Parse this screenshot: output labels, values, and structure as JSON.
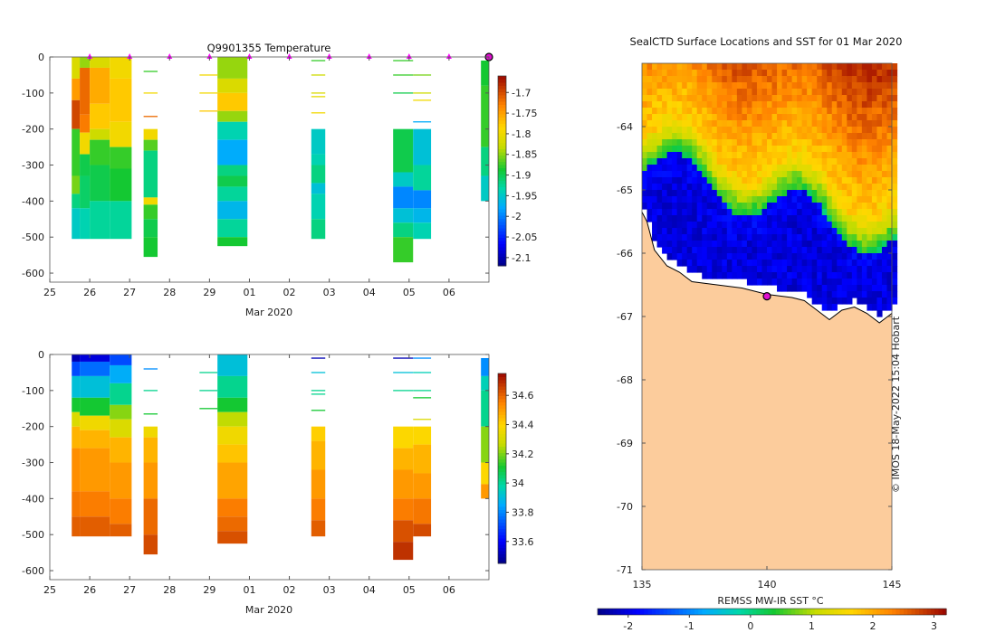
{
  "chart_data": [
    {
      "type": "heatmap",
      "name": "temperature-section",
      "title": "Q9901355  Temperature",
      "xlabel": "Mar 2020",
      "ylabel": "",
      "x_ticks": [
        "25",
        "26",
        "27",
        "28",
        "29",
        "01",
        "02",
        "03",
        "04",
        "05",
        "06"
      ],
      "xlim": [
        25,
        36
      ],
      "ylim": [
        -625,
        0
      ],
      "y_ticks": [
        0,
        -100,
        -200,
        -300,
        -400,
        -500,
        -600
      ],
      "colorbar": {
        "min": -2.12,
        "max": -1.66,
        "ticks": [
          -1.7,
          -1.75,
          -1.8,
          -1.85,
          -1.9,
          -1.95,
          -2,
          -2.05,
          -2.1
        ]
      },
      "surface_markers_day": [
        26,
        27,
        28,
        29,
        30,
        31,
        32,
        33,
        34,
        35
      ],
      "latest_marker_day": 36,
      "profiles": [
        {
          "x0": 25.55,
          "x1": 25.75,
          "depth": 505,
          "layers": [
            [
              0,
              -1.82
            ],
            [
              60,
              -1.75
            ],
            [
              120,
              -1.7
            ],
            [
              200,
              -1.88
            ],
            [
              330,
              -1.86
            ],
            [
              380,
              -1.92
            ],
            [
              420,
              -1.95
            ]
          ]
        },
        {
          "x0": 25.75,
          "x1": 26.0,
          "depth": 505,
          "layers": [
            [
              0,
              -1.85
            ],
            [
              30,
              -1.72
            ],
            [
              160,
              -1.73
            ],
            [
              210,
              -1.8
            ],
            [
              270,
              -1.9
            ],
            [
              330,
              -1.91
            ],
            [
              420,
              -1.94
            ]
          ]
        },
        {
          "x0": 26.0,
          "x1": 26.5,
          "depth": 505,
          "layers": [
            [
              0,
              -1.82
            ],
            [
              30,
              -1.76
            ],
            [
              130,
              -1.78
            ],
            [
              200,
              -1.83
            ],
            [
              230,
              -1.88
            ],
            [
              300,
              -1.9
            ],
            [
              400,
              -1.93
            ]
          ]
        },
        {
          "x0": 26.5,
          "x1": 27.05,
          "depth": 505,
          "layers": [
            [
              0,
              -1.8
            ],
            [
              60,
              -1.78
            ],
            [
              180,
              -1.8
            ],
            [
              250,
              -1.88
            ],
            [
              310,
              -1.89
            ],
            [
              400,
              -1.93
            ]
          ]
        },
        {
          "x0": 27.35,
          "x1": 27.7,
          "depth": 555,
          "layers": [
            [
              200,
              -1.8
            ],
            [
              230,
              -1.87
            ],
            [
              260,
              -1.92
            ],
            [
              390,
              -1.8
            ],
            [
              410,
              -1.88
            ],
            [
              450,
              -1.9
            ],
            [
              500,
              -1.89
            ]
          ]
        },
        {
          "x0": 29.2,
          "x1": 29.95,
          "depth": 525,
          "layers": [
            [
              0,
              -1.85
            ],
            [
              60,
              -1.82
            ],
            [
              100,
              -1.78
            ],
            [
              150,
              -1.85
            ],
            [
              180,
              -1.94
            ],
            [
              230,
              -1.98
            ],
            [
              300,
              -1.92
            ],
            [
              330,
              -1.9
            ],
            [
              360,
              -1.93
            ],
            [
              400,
              -1.97
            ],
            [
              450,
              -1.93
            ],
            [
              500,
              -1.89
            ]
          ]
        },
        {
          "x0": 31.55,
          "x1": 31.9,
          "depth": 505,
          "layers": [
            [
              200,
              -1.95
            ],
            [
              270,
              -1.94
            ],
            [
              300,
              -1.92
            ],
            [
              350,
              -1.96
            ],
            [
              380,
              -1.94
            ],
            [
              450,
              -1.92
            ]
          ]
        },
        {
          "x0": 33.6,
          "x1": 34.1,
          "depth": 570,
          "layers": [
            [
              200,
              -1.9
            ],
            [
              320,
              -1.95
            ],
            [
              360,
              -2.0
            ],
            [
              420,
              -1.96
            ],
            [
              460,
              -1.92
            ],
            [
              500,
              -1.88
            ]
          ]
        },
        {
          "x0": 34.1,
          "x1": 34.55,
          "depth": 505,
          "layers": [
            [
              200,
              -1.96
            ],
            [
              300,
              -1.93
            ],
            [
              370,
              -2.0
            ],
            [
              420,
              -1.97
            ],
            [
              460,
              -1.94
            ]
          ]
        },
        {
          "x0": 35.8,
          "x1": 36.0,
          "depth": 400,
          "layers": [
            [
              10,
              -1.89
            ],
            [
              80,
              -1.88
            ],
            [
              250,
              -1.92
            ],
            [
              330,
              -1.95
            ]
          ]
        }
      ],
      "thin_lines": [
        {
          "x0": 27.35,
          "x1": 27.7,
          "depths": [
            [
              40,
              -1.88
            ],
            [
              100,
              -1.8
            ],
            [
              165,
              -1.72
            ]
          ]
        },
        {
          "x0": 28.75,
          "x1": 29.2,
          "depths": [
            [
              50,
              -1.8
            ],
            [
              100,
              -1.8
            ],
            [
              150,
              -1.78
            ]
          ]
        },
        {
          "x0": 31.55,
          "x1": 31.9,
          "depths": [
            [
              10,
              -1.88
            ],
            [
              50,
              -1.83
            ],
            [
              100,
              -1.82
            ],
            [
              110,
              -1.81
            ],
            [
              155,
              -1.8
            ]
          ]
        },
        {
          "x0": 33.6,
          "x1": 34.1,
          "depths": [
            [
              10,
              -1.88
            ],
            [
              50,
              -1.88
            ],
            [
              100,
              -1.9
            ]
          ]
        },
        {
          "x0": 34.1,
          "x1": 34.55,
          "depths": [
            [
              50,
              -1.86
            ],
            [
              100,
              -1.83
            ],
            [
              120,
              -1.8
            ],
            [
              180,
              -1.98
            ]
          ]
        }
      ]
    },
    {
      "type": "heatmap",
      "name": "salinity-section",
      "title": "",
      "xlabel": "Mar 2020",
      "x_ticks": [
        "25",
        "26",
        "27",
        "28",
        "29",
        "01",
        "02",
        "03",
        "04",
        "05",
        "06"
      ],
      "xlim": [
        25,
        36
      ],
      "ylim": [
        -625,
        0
      ],
      "y_ticks": [
        0,
        -100,
        -200,
        -300,
        -400,
        -500,
        -600
      ],
      "colorbar": {
        "min": 33.45,
        "max": 34.75,
        "ticks": [
          34.6,
          34.4,
          34.2,
          34,
          33.8,
          33.6
        ]
      },
      "profiles": [
        {
          "x0": 25.55,
          "x1": 25.75,
          "depth": 505,
          "layers": [
            [
              0,
              33.5
            ],
            [
              20,
              33.7
            ],
            [
              60,
              33.9
            ],
            [
              120,
              34.1
            ],
            [
              160,
              34.3
            ],
            [
              200,
              34.45
            ],
            [
              260,
              34.52
            ],
            [
              380,
              34.56
            ],
            [
              450,
              34.6
            ]
          ]
        },
        {
          "x0": 25.75,
          "x1": 26.5,
          "depth": 505,
          "layers": [
            [
              0,
              33.55
            ],
            [
              20,
              33.75
            ],
            [
              60,
              33.9
            ],
            [
              120,
              34.1
            ],
            [
              170,
              34.35
            ],
            [
              210,
              34.45
            ],
            [
              260,
              34.5
            ],
            [
              380,
              34.55
            ],
            [
              450,
              34.6
            ]
          ]
        },
        {
          "x0": 26.5,
          "x1": 27.05,
          "depth": 505,
          "layers": [
            [
              0,
              33.7
            ],
            [
              30,
              33.85
            ],
            [
              80,
              34.0
            ],
            [
              140,
              34.2
            ],
            [
              180,
              34.3
            ],
            [
              230,
              34.45
            ],
            [
              300,
              34.5
            ],
            [
              400,
              34.55
            ],
            [
              470,
              34.6
            ]
          ]
        },
        {
          "x0": 27.35,
          "x1": 27.7,
          "depth": 555,
          "layers": [
            [
              200,
              34.35
            ],
            [
              230,
              34.45
            ],
            [
              300,
              34.5
            ],
            [
              400,
              34.58
            ],
            [
              500,
              34.63
            ]
          ]
        },
        {
          "x0": 29.2,
          "x1": 29.95,
          "depth": 525,
          "layers": [
            [
              0,
              33.9
            ],
            [
              60,
              34.0
            ],
            [
              120,
              34.1
            ],
            [
              160,
              34.25
            ],
            [
              200,
              34.35
            ],
            [
              250,
              34.42
            ],
            [
              300,
              34.48
            ],
            [
              400,
              34.55
            ],
            [
              450,
              34.58
            ],
            [
              490,
              34.62
            ]
          ]
        },
        {
          "x0": 31.55,
          "x1": 31.9,
          "depth": 505,
          "layers": [
            [
              200,
              34.4
            ],
            [
              240,
              34.45
            ],
            [
              320,
              34.5
            ],
            [
              400,
              34.55
            ],
            [
              460,
              34.6
            ]
          ]
        },
        {
          "x0": 33.6,
          "x1": 34.1,
          "depth": 570,
          "layers": [
            [
              200,
              34.38
            ],
            [
              260,
              34.45
            ],
            [
              320,
              34.5
            ],
            [
              400,
              34.55
            ],
            [
              460,
              34.62
            ],
            [
              520,
              34.67
            ]
          ]
        },
        {
          "x0": 34.1,
          "x1": 34.55,
          "depth": 505,
          "layers": [
            [
              200,
              34.38
            ],
            [
              250,
              34.45
            ],
            [
              330,
              34.5
            ],
            [
              400,
              34.56
            ],
            [
              470,
              34.63
            ]
          ]
        },
        {
          "x0": 35.8,
          "x1": 36.0,
          "depth": 400,
          "layers": [
            [
              10,
              33.8
            ],
            [
              60,
              33.95
            ],
            [
              100,
              34.0
            ],
            [
              200,
              34.2
            ],
            [
              300,
              34.38
            ],
            [
              360,
              34.5
            ]
          ]
        }
      ],
      "thin_lines": [
        {
          "x0": 27.35,
          "x1": 27.7,
          "depths": [
            [
              40,
              33.8
            ],
            [
              100,
              34.0
            ],
            [
              165,
              34.1
            ]
          ]
        },
        {
          "x0": 28.75,
          "x1": 29.2,
          "depths": [
            [
              50,
              34.0
            ],
            [
              100,
              34.0
            ],
            [
              150,
              34.1
            ]
          ]
        },
        {
          "x0": 31.55,
          "x1": 31.9,
          "depths": [
            [
              10,
              33.5
            ],
            [
              50,
              33.9
            ],
            [
              100,
              34.0
            ],
            [
              110,
              34.0
            ],
            [
              155,
              34.1
            ]
          ]
        },
        {
          "x0": 33.6,
          "x1": 34.1,
          "depths": [
            [
              10,
              33.5
            ],
            [
              50,
              33.9
            ],
            [
              100,
              34.0
            ]
          ]
        },
        {
          "x0": 34.1,
          "x1": 34.55,
          "depths": [
            [
              10,
              33.8
            ],
            [
              50,
              33.95
            ],
            [
              100,
              34.0
            ],
            [
              120,
              34.1
            ],
            [
              180,
              34.3
            ]
          ]
        }
      ]
    },
    {
      "type": "heatmap",
      "name": "sst-map",
      "title": "SealCTD Surface Locations and SST for 01 Mar 2020",
      "xlabel": "",
      "x_ticks": [
        "135",
        "140",
        "145"
      ],
      "y_ticks": [
        "-64",
        "-65",
        "-66",
        "-67",
        "-68",
        "-69",
        "-70",
        "-71"
      ],
      "xlim": [
        135,
        145
      ],
      "ylim": [
        -71,
        -63
      ],
      "colorbar": {
        "label": "REMSS MW-IR SST °C",
        "min": -2.5,
        "max": 3.2,
        "ticks": [
          "-2",
          "-1",
          "0",
          "1",
          "2",
          "3"
        ]
      },
      "seal_location": {
        "lon": 140.0,
        "lat": -66.68
      },
      "watermark": "© IMOS 18-May-2022 15:04 Hobart"
    }
  ]
}
